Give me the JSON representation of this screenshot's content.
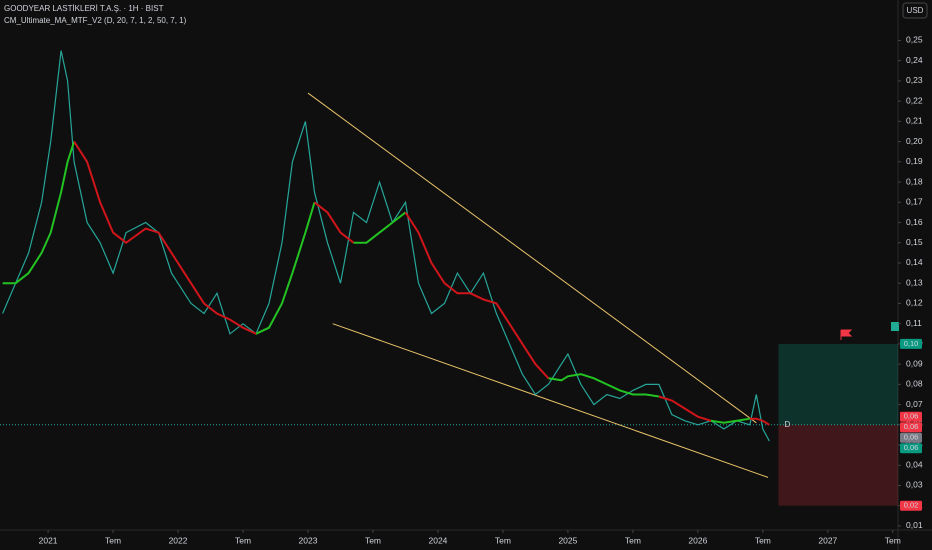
{
  "header": {
    "title": "GOODYEAR LASTİKLERİ T.A.Ş. · 1H · BIST",
    "indicator": "CM_Ultimate_MA_MTF_V2 (D, 20, 7, 1, 2, 50, 7, 1)",
    "currency": "USD"
  },
  "chart_data": {
    "type": "line",
    "x": [
      2020.65,
      2020.75,
      2020.85,
      2020.95,
      2021.02,
      2021.1,
      2021.15,
      2021.2,
      2021.3,
      2021.4,
      2021.5,
      2021.6,
      2021.75,
      2021.85,
      2021.95,
      2022.1,
      2022.2,
      2022.3,
      2022.4,
      2022.5,
      2022.6,
      2022.7,
      2022.8,
      2022.88,
      2022.98,
      2023.05,
      2023.15,
      2023.25,
      2023.35,
      2023.45,
      2023.55,
      2023.65,
      2023.75,
      2023.85,
      2023.95,
      2024.05,
      2024.15,
      2024.25,
      2024.35,
      2024.45,
      2024.55,
      2024.65,
      2024.75,
      2024.85,
      2024.95,
      2025.0,
      2025.1,
      2025.2,
      2025.3,
      2025.4,
      2025.5,
      2025.6,
      2025.7,
      2025.8,
      2025.9,
      2026.0,
      2026.1,
      2026.2,
      2026.3,
      2026.4,
      2026.45,
      2026.5,
      2026.55
    ],
    "series": [
      {
        "color": "#26a69a",
        "values": [
          0.115,
          0.13,
          0.145,
          0.17,
          0.2,
          0.245,
          0.23,
          0.19,
          0.16,
          0.15,
          0.135,
          0.155,
          0.16,
          0.155,
          0.135,
          0.12,
          0.115,
          0.125,
          0.105,
          0.11,
          0.105,
          0.12,
          0.15,
          0.19,
          0.21,
          0.175,
          0.15,
          0.13,
          0.165,
          0.16,
          0.18,
          0.16,
          0.17,
          0.13,
          0.115,
          0.12,
          0.135,
          0.125,
          0.135,
          0.115,
          0.1,
          0.085,
          0.075,
          0.08,
          0.09,
          0.095,
          0.08,
          0.07,
          0.075,
          0.073,
          0.077,
          0.08,
          0.08,
          0.065,
          0.062,
          0.06,
          0.062,
          0.058,
          0.062,
          0.06,
          0.075,
          0.058,
          0.052
        ]
      },
      {
        "color": "#22c322",
        "values": [
          0.13,
          0.13,
          0.135,
          0.145,
          0.155,
          0.175,
          0.19,
          0.2,
          null,
          null,
          null,
          null,
          null,
          null,
          null,
          null,
          null,
          null,
          null,
          null,
          0.105,
          0.108,
          0.12,
          0.135,
          0.155,
          0.17,
          null,
          null,
          0.15,
          0.15,
          0.155,
          0.16,
          0.165,
          null,
          null,
          null,
          null,
          null,
          null,
          null,
          null,
          null,
          null,
          0.083,
          0.082,
          0.084,
          0.085,
          0.083,
          0.08,
          0.077,
          0.075,
          0.075,
          0.074,
          null,
          null,
          null,
          0.062,
          0.061,
          0.062,
          0.063,
          null,
          null,
          null
        ]
      },
      {
        "color": "#d0151b",
        "values": [
          null,
          null,
          null,
          null,
          null,
          null,
          null,
          0.2,
          0.19,
          0.17,
          0.155,
          0.15,
          0.157,
          0.155,
          0.145,
          0.13,
          0.12,
          0.115,
          0.112,
          0.108,
          0.105,
          null,
          null,
          null,
          null,
          0.17,
          0.165,
          0.155,
          0.15,
          null,
          null,
          null,
          0.165,
          0.155,
          0.14,
          0.13,
          0.125,
          0.125,
          0.122,
          0.12,
          0.11,
          0.1,
          0.09,
          0.083,
          null,
          null,
          null,
          null,
          null,
          null,
          null,
          null,
          0.074,
          0.072,
          0.068,
          0.064,
          0.062,
          null,
          null,
          0.063,
          0.063,
          0.062,
          0.06
        ]
      }
    ],
    "trendlines": [
      {
        "color": "#e8c36a",
        "x": [
          2023.0,
          2026.45
        ],
        "y": [
          0.224,
          0.061
        ]
      },
      {
        "color": "#e8c36a",
        "x": [
          2023.19,
          2026.54
        ],
        "y": [
          0.11,
          0.034
        ]
      }
    ],
    "position": {
      "x_start": 2026.62,
      "entry": 0.06,
      "target": 0.1,
      "stop": 0.02,
      "label": "D"
    },
    "price_labels": [
      {
        "value": 0.1,
        "label": "0,10",
        "color": "#089981"
      },
      {
        "value": 0.064,
        "label": "0,06",
        "color": "#f23645"
      },
      {
        "value": 0.062,
        "label": "0,06",
        "color": "#f23645"
      },
      {
        "value": 0.06,
        "label": "0,06",
        "color": "#787b86"
      },
      {
        "value": 0.058,
        "label": "0,06",
        "color": "#089981"
      },
      {
        "value": 0.02,
        "label": "0,02",
        "color": "#f23645"
      }
    ],
    "xlim": [
      2020.63,
      2027.54
    ],
    "xticks": [
      2021,
      {
        "value": 2021.5,
        "label": "Tem"
      },
      2022,
      {
        "value": 2022.5,
        "label": "Tem"
      },
      2023,
      {
        "value": 2023.5,
        "label": "Tem"
      },
      2024,
      {
        "value": 2024.5,
        "label": "Tem"
      },
      2025,
      {
        "value": 2025.5,
        "label": "Tem"
      },
      2026,
      {
        "value": 2026.5,
        "label": "Tem"
      },
      2027,
      {
        "value": 2027.5,
        "label": "Tem"
      }
    ],
    "ylim": [
      0.008,
      0.27
    ],
    "yticks": [
      {
        "value": 0.01,
        "label": "0,01"
      },
      {
        "value": 0.02,
        "label": "0,02"
      },
      {
        "value": 0.03,
        "label": "0,03"
      },
      {
        "value": 0.04,
        "label": "0,04"
      },
      {
        "value": 0.05,
        "label": "0,05"
      },
      {
        "value": 0.06,
        "label": "0,06"
      },
      {
        "value": 0.07,
        "label": "0,07"
      },
      {
        "value": 0.08,
        "label": "0,08"
      },
      {
        "value": 0.09,
        "label": "0,09"
      },
      {
        "value": 0.1,
        "label": "0,10"
      },
      {
        "value": 0.11,
        "label": "0,11"
      },
      {
        "value": 0.12,
        "label": "0,12"
      },
      {
        "value": 0.13,
        "label": "0,13"
      },
      {
        "value": 0.14,
        "label": "0,14"
      },
      {
        "value": 0.15,
        "label": "0,15"
      },
      {
        "value": 0.16,
        "label": "0,16"
      },
      {
        "value": 0.17,
        "label": "0,17"
      },
      {
        "value": 0.18,
        "label": "0,18"
      },
      {
        "value": 0.19,
        "label": "0,19"
      },
      {
        "value": 0.2,
        "label": "0,20"
      },
      {
        "value": 0.21,
        "label": "0,21"
      },
      {
        "value": 0.22,
        "label": "0,22"
      },
      {
        "value": 0.23,
        "label": "0,23"
      },
      {
        "value": 0.24,
        "label": "0,24"
      },
      {
        "value": 0.25,
        "label": "0,25"
      }
    ],
    "grid": false
  }
}
